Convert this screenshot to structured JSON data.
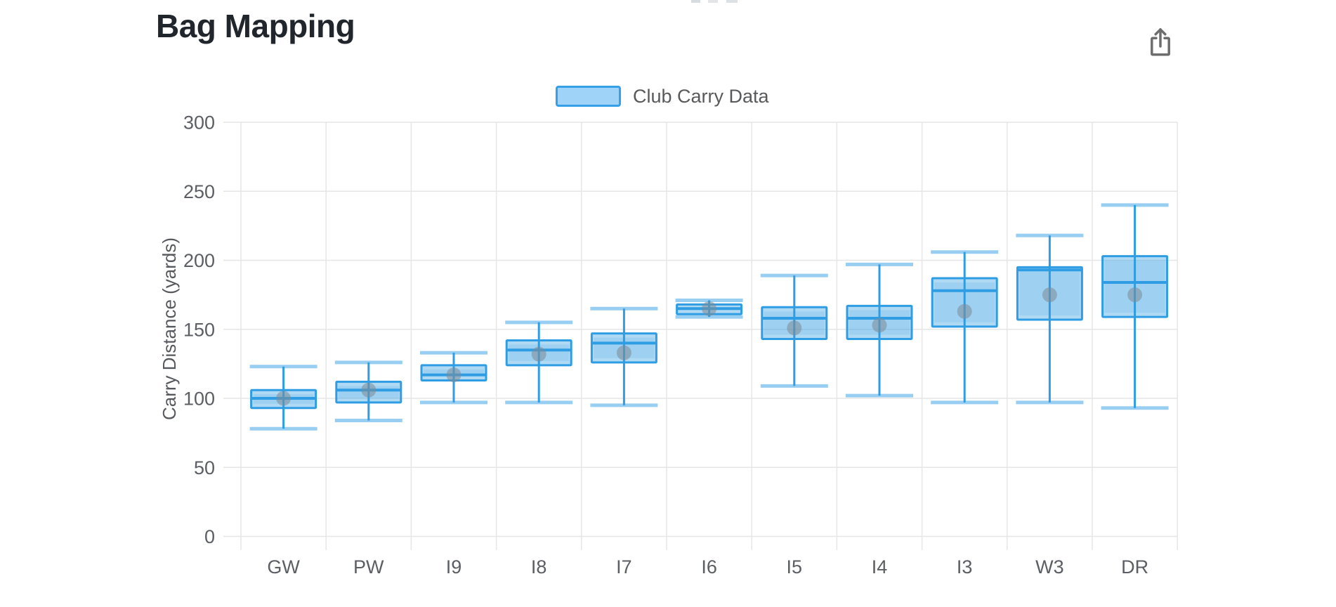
{
  "header": {
    "title": "Bag Mapping",
    "export_icon": "share-export-icon"
  },
  "legend": {
    "label": "Club Carry Data",
    "swatch_fill": "#9fd3f7",
    "swatch_border": "#35a0e8"
  },
  "chart_data": {
    "type": "boxplot",
    "title": "Bag Mapping",
    "series_name": "Club Carry Data",
    "xlabel": "",
    "ylabel": "Carry Distance (yards)",
    "ylim": [
      0,
      300
    ],
    "yticks": [
      0,
      50,
      100,
      150,
      200,
      250,
      300
    ],
    "grid": true,
    "legend_position": "top-center",
    "categories": [
      "GW",
      "PW",
      "I9",
      "I8",
      "I7",
      "I6",
      "I5",
      "I4",
      "I3",
      "W3",
      "DR"
    ],
    "boxes": [
      {
        "club": "GW",
        "min": 78,
        "q1": 93,
        "median": 100,
        "q3": 106,
        "max": 123,
        "mean": 100
      },
      {
        "club": "PW",
        "min": 84,
        "q1": 97,
        "median": 106,
        "q3": 112,
        "max": 126,
        "mean": 106
      },
      {
        "club": "I9",
        "min": 97,
        "q1": 113,
        "median": 117,
        "q3": 124,
        "max": 133,
        "mean": 117
      },
      {
        "club": "I8",
        "min": 97,
        "q1": 124,
        "median": 135,
        "q3": 142,
        "max": 155,
        "mean": 132
      },
      {
        "club": "I7",
        "min": 95,
        "q1": 126,
        "median": 140,
        "q3": 147,
        "max": 165,
        "mean": 133
      },
      {
        "club": "I6",
        "min": 159,
        "q1": 161,
        "median": 165,
        "q3": 168,
        "max": 171,
        "mean": 165
      },
      {
        "club": "I5",
        "min": 109,
        "q1": 143,
        "median": 158,
        "q3": 166,
        "max": 189,
        "mean": 151
      },
      {
        "club": "I4",
        "min": 102,
        "q1": 143,
        "median": 158,
        "q3": 167,
        "max": 197,
        "mean": 153
      },
      {
        "club": "I3",
        "min": 97,
        "q1": 152,
        "median": 178,
        "q3": 187,
        "max": 206,
        "mean": 163
      },
      {
        "club": "W3",
        "min": 97,
        "q1": 157,
        "median": 193,
        "q3": 195,
        "max": 218,
        "mean": 175
      },
      {
        "club": "DR",
        "min": 93,
        "q1": 159,
        "median": 184,
        "q3": 203,
        "max": 240,
        "mean": 175
      }
    ],
    "colors": {
      "box_border": "#2f9de3",
      "box_fill": "rgba(47,157,227,0.38)",
      "box_fill_inner": "rgba(47,157,227,0.14)",
      "whisker_cap": "rgba(47,157,227,0.5)",
      "mean_dot": "rgba(126,138,150,0.55)",
      "gridline": "#e6e6e6",
      "tick_text": "#5b5e63"
    }
  }
}
